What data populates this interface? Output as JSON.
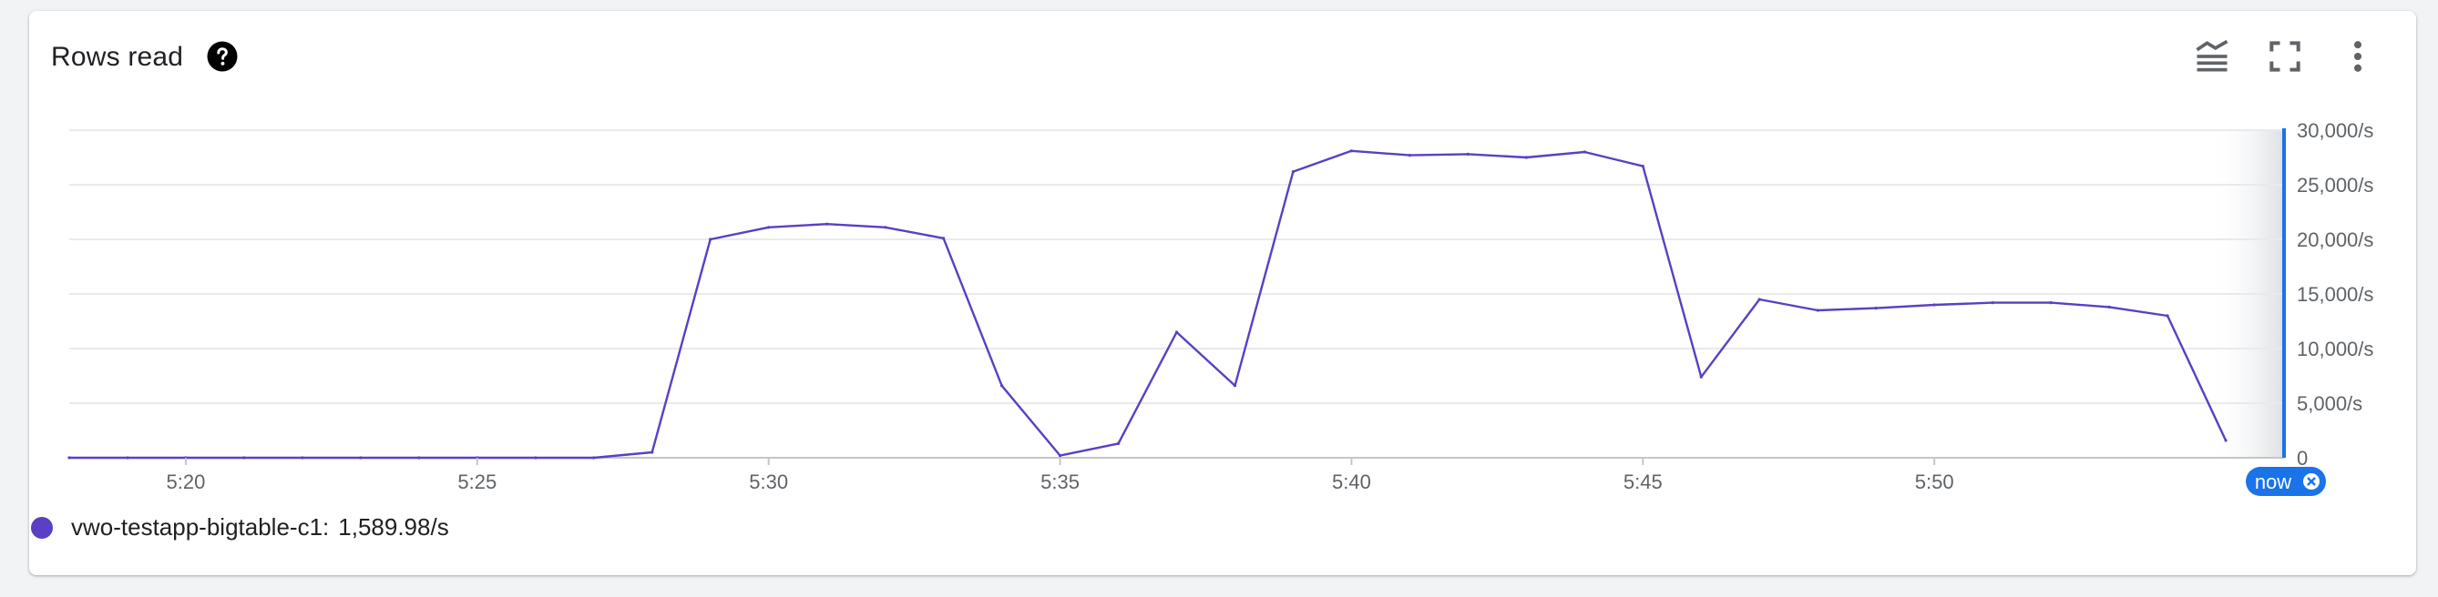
{
  "header": {
    "title": "Rows read",
    "help_icon": "help-circle-icon",
    "tools": [
      {
        "name": "legend-toggle-icon"
      },
      {
        "name": "fullscreen-icon"
      },
      {
        "name": "more-vert-icon"
      }
    ]
  },
  "colors": {
    "series": "#5b3fc4",
    "now": "#1a73e8",
    "grid": "#e8eaed",
    "axis_text": "#5f6368"
  },
  "chart_data": {
    "type": "line",
    "x_unit": "minute",
    "xlim": [
      "5:18",
      "5:56"
    ],
    "ylim": [
      0,
      30000
    ],
    "y_ticks": [
      0,
      5000,
      10000,
      15000,
      20000,
      25000,
      30000
    ],
    "y_tick_labels": [
      "0",
      "5,000/s",
      "10,000/s",
      "15,000/s",
      "20,000/s",
      "25,000/s",
      "30,000/s"
    ],
    "x_ticks": [
      "5:20",
      "5:25",
      "5:30",
      "5:35",
      "5:40",
      "5:45",
      "5:50"
    ],
    "now_label": "now",
    "grid": true,
    "series": [
      {
        "name": "vwo-testapp-bigtable-c1",
        "x": [
          "5:18",
          "5:19",
          "5:20",
          "5:21",
          "5:22",
          "5:23",
          "5:24",
          "5:25",
          "5:26",
          "5:27",
          "5:28",
          "5:29",
          "5:30",
          "5:31",
          "5:32",
          "5:33",
          "5:34",
          "5:35",
          "5:36",
          "5:37",
          "5:38",
          "5:39",
          "5:40",
          "5:41",
          "5:42",
          "5:43",
          "5:44",
          "5:45",
          "5:46",
          "5:47",
          "5:48",
          "5:49",
          "5:50",
          "5:51",
          "5:52",
          "5:53",
          "5:54",
          "5:55"
        ],
        "values": [
          0,
          0,
          0,
          0,
          0,
          0,
          0,
          0,
          0,
          0,
          500,
          20000,
          21100,
          21400,
          21100,
          20100,
          6600,
          200,
          1300,
          11500,
          6600,
          26200,
          28100,
          27700,
          27800,
          27500,
          28000,
          26700,
          7400,
          14500,
          13500,
          13700,
          14000,
          14200,
          14200,
          13800,
          13000,
          1590
        ]
      }
    ]
  },
  "legend": {
    "series_label": "vwo-testapp-bigtable-c1:",
    "value": "1,589.98/s"
  }
}
